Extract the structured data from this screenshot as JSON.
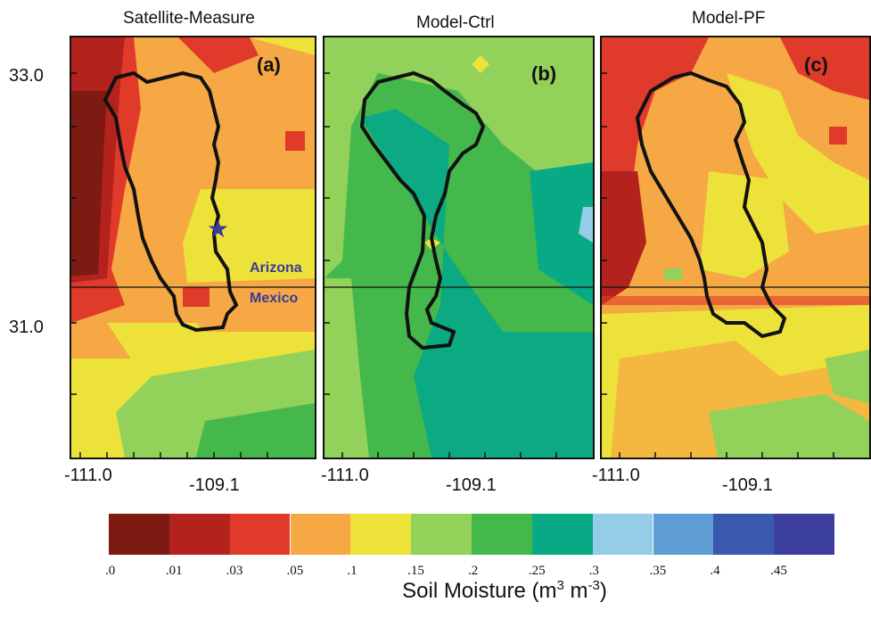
{
  "panels": [
    {
      "title": "Satellite-Measure",
      "label": "(a)"
    },
    {
      "title": "Model-Ctrl",
      "label": "(b)"
    },
    {
      "title": "Model-PF",
      "label": "(c)"
    }
  ],
  "y_ticks": [
    "33.0",
    "31.0"
  ],
  "x_ticks": [
    [
      "-111.0",
      "-109.1"
    ],
    [
      "-111.0",
      "-109.1"
    ],
    [
      "-111.0",
      "-109.1"
    ]
  ],
  "regions": {
    "north": "Arizona",
    "south": "Mexico"
  },
  "colorbar": {
    "title_main": "Soil Moisture (m",
    "sup1": "3",
    "mid": " m",
    "sup2": "-3",
    "close": ")",
    "labels": [
      ".0",
      ".01",
      ".03",
      ".05",
      ".1",
      ".15",
      ".2",
      ".25",
      ".3",
      ".35",
      ".4",
      ".45"
    ],
    "colors": [
      "#7d1a12",
      "#b3221c",
      "#e03a2b",
      "#f5a843",
      "#ede23a",
      "#92d15a",
      "#45b84c",
      "#08a985",
      "#95cde8",
      "#5d9dd3",
      "#3a58ad",
      "#3d3f9e"
    ]
  },
  "marker": {
    "type": "star-icon",
    "color": "#3a3a9c"
  }
}
